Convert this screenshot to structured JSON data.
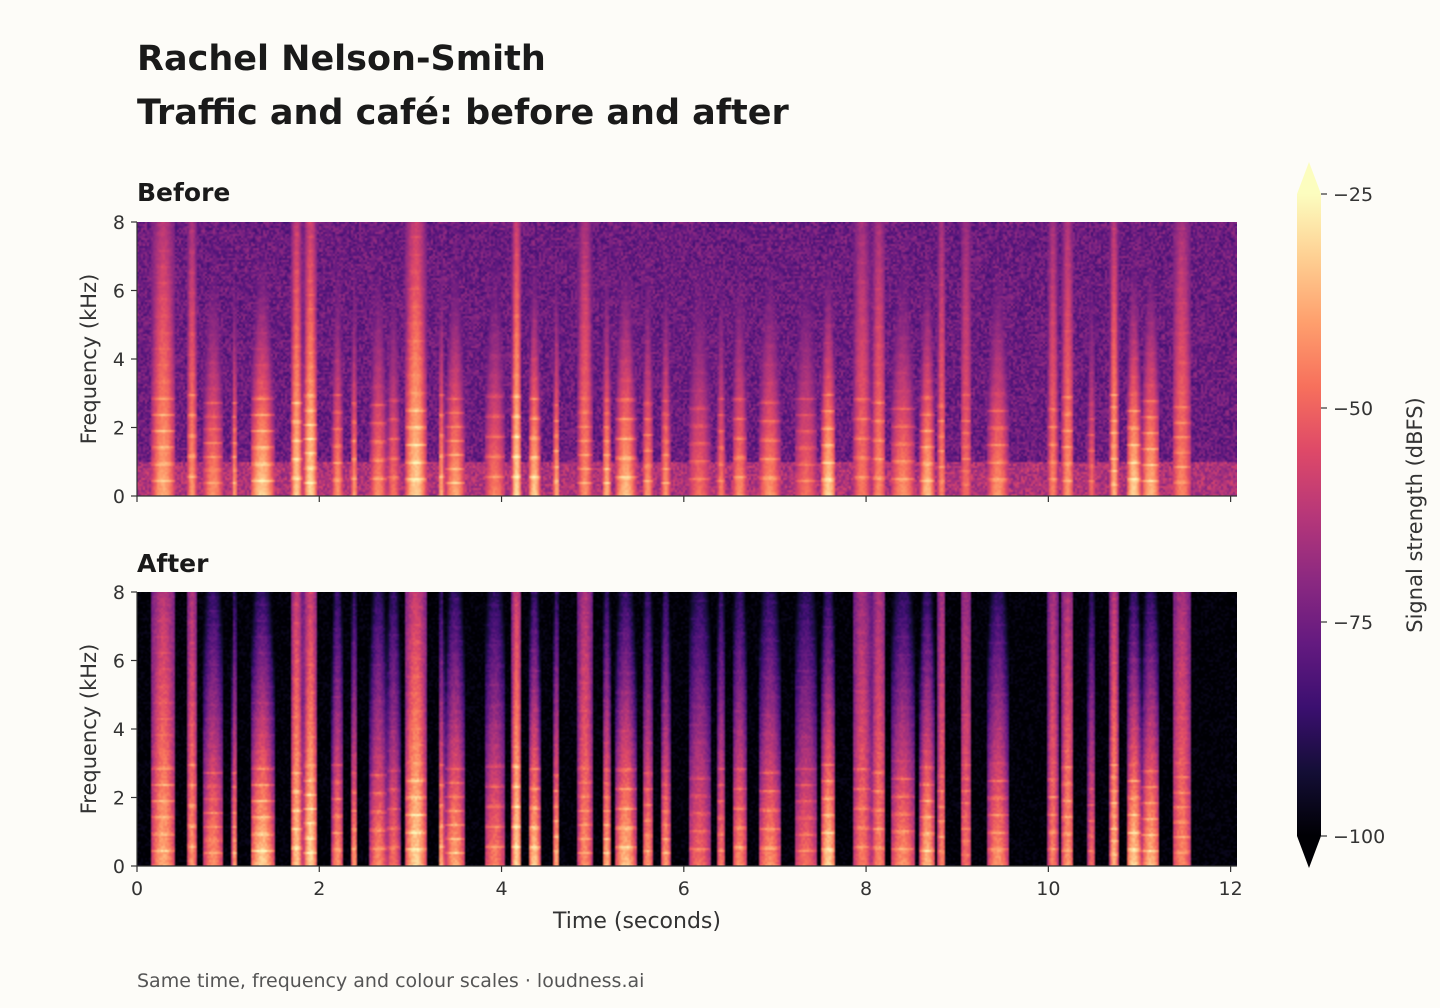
{
  "header": {
    "title": "Rachel Nelson-Smith",
    "subtitle": "Traffic and café: before and after"
  },
  "chart_data": [
    {
      "type": "heatmap",
      "title": "Before",
      "xlabel": "",
      "ylabel": "Frequency (kHz)",
      "xlim": [
        0,
        12.07
      ],
      "ylim": [
        0,
        8
      ],
      "x_ticks": [
        0,
        2,
        4,
        6,
        8,
        10,
        12
      ],
      "x_tick_labels_shown": false,
      "y_ticks": [
        "0",
        "2",
        "4",
        "6",
        "8"
      ],
      "description_values": "Spectrogram of speech mixed with traffic and café noise; broadband noise floor around -75 to -65 dBFS, speech harmonics below 2 kHz up to about -30 dBFS"
    },
    {
      "type": "heatmap",
      "title": "After",
      "xlabel": "Time (seconds)",
      "ylabel": "Frequency (kHz)",
      "xlim": [
        0,
        12.07
      ],
      "ylim": [
        0,
        8
      ],
      "x_ticks": [
        "0",
        "2",
        "4",
        "6",
        "8",
        "10",
        "12"
      ],
      "y_ticks": [
        "0",
        "2",
        "4",
        "6",
        "8"
      ],
      "description_values": "Same speech with background noise removed; silent regions near -100 dBFS, speech harmonics below 2 kHz up to about -30 dBFS"
    }
  ],
  "colorbar": {
    "label": "Signal strength (dBFS)",
    "range": [
      -100,
      -25
    ],
    "ticks": [
      "−25",
      "−50",
      "−75",
      "−100"
    ],
    "tick_values": [
      -25,
      -50,
      -75,
      -100
    ],
    "colormap": "magma",
    "extend": "both"
  },
  "footer": {
    "note": "Same time, frequency and colour scales  ·  loudness.ai"
  },
  "colors": {
    "background": "#fdfcf8",
    "text": "#1a1a1a",
    "axis": "#333333"
  }
}
